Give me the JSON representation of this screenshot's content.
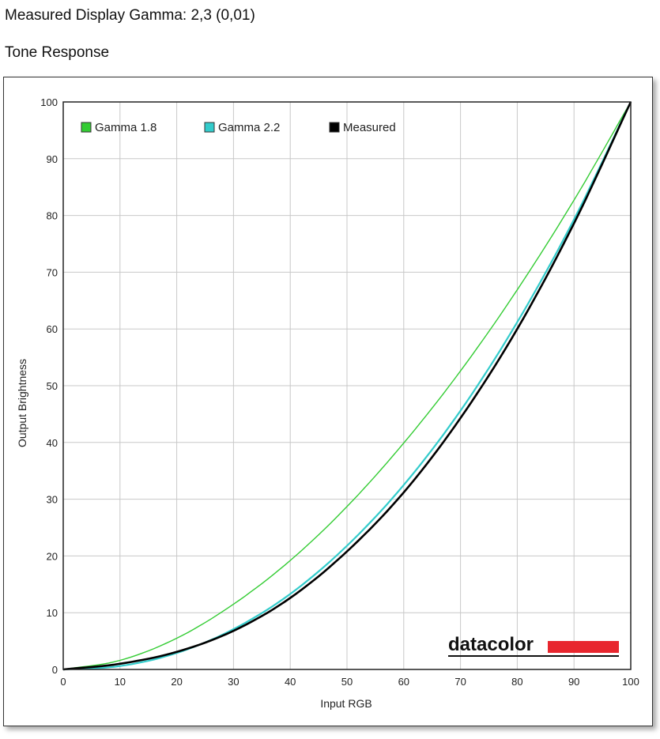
{
  "header": {
    "measured": "Measured Display Gamma: 2,3 (0,01)",
    "section": "Tone Response"
  },
  "logo": {
    "text": "datacolor",
    "color": "#e8262e"
  },
  "chart_data": {
    "type": "line",
    "title": "",
    "xlabel": "Input RGB",
    "ylabel": "Output Brightness",
    "xlim": [
      0,
      100
    ],
    "ylim": [
      0,
      100
    ],
    "xticks": [
      0,
      10,
      20,
      30,
      40,
      50,
      60,
      70,
      80,
      90,
      100
    ],
    "yticks": [
      0,
      10,
      20,
      30,
      40,
      50,
      60,
      70,
      80,
      90,
      100
    ],
    "grid": true,
    "legend_position": "top-left",
    "series": [
      {
        "name": "Gamma 1.8",
        "color": "#33cc33",
        "x": [
          0,
          10,
          20,
          30,
          40,
          50,
          60,
          70,
          80,
          90,
          100
        ],
        "y": [
          0,
          1.6,
          5.5,
          11.5,
          19.2,
          28.7,
          39.9,
          52.6,
          66.9,
          82.7,
          100
        ]
      },
      {
        "name": "Gamma 2.2",
        "color": "#33cccc",
        "x": [
          0,
          10,
          20,
          30,
          40,
          50,
          60,
          70,
          80,
          90,
          100
        ],
        "y": [
          0,
          0.6,
          2.9,
          7.1,
          13.3,
          21.8,
          32.5,
          45.6,
          61.2,
          79.3,
          100
        ]
      },
      {
        "name": "Measured",
        "color": "#000000",
        "x": [
          0,
          10,
          20,
          30,
          40,
          50,
          60,
          70,
          80,
          90,
          100
        ],
        "y": [
          0,
          1.0,
          3.1,
          6.8,
          12.6,
          20.8,
          31.2,
          44.3,
          60.0,
          78.6,
          100
        ]
      }
    ]
  }
}
